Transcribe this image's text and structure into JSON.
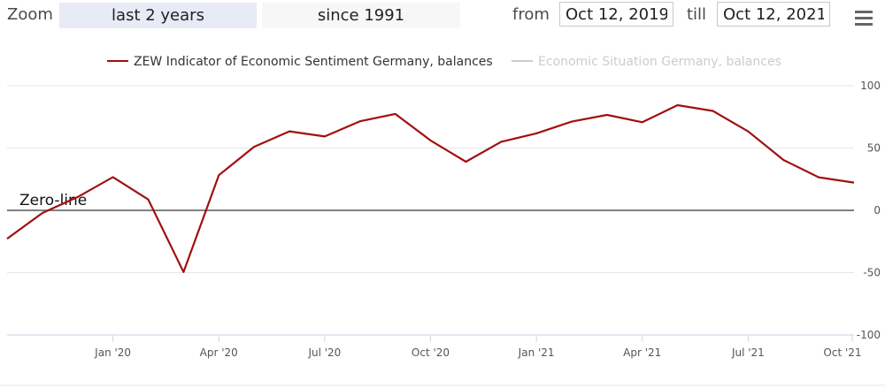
{
  "toolbar": {
    "zoom_label": "Zoom",
    "zoom_buttons": [
      "last 2 years",
      "since 1991"
    ],
    "from_label": "from",
    "from_value": "Oct 12, 2019",
    "till_label": "till",
    "till_value": "Oct 12, 2021",
    "menu_icon": "hamburger-menu-icon"
  },
  "colors": {
    "series_1": "#a01010",
    "series_2_hidden": "#cccccc",
    "zero_line": "#808080",
    "grid": "#e6e6e6",
    "active_zoom": "#e6ebf5"
  },
  "chart_data": {
    "type": "line",
    "legend_position": "top-center",
    "series": [
      {
        "name": "ZEW Indicator of Economic Sentiment Germany, balances",
        "visible": true,
        "x": [
          "2019-10",
          "2019-11",
          "2019-12",
          "2020-01",
          "2020-02",
          "2020-03",
          "2020-04",
          "2020-05",
          "2020-06",
          "2020-07",
          "2020-08",
          "2020-09",
          "2020-10",
          "2020-11",
          "2020-12",
          "2021-01",
          "2021-02",
          "2021-03",
          "2021-04",
          "2021-05",
          "2021-06",
          "2021-07",
          "2021-08",
          "2021-09",
          "2021-10"
        ],
        "values": [
          -22.8,
          -2.1,
          10.7,
          26.7,
          8.7,
          -49.5,
          28.2,
          51.0,
          63.4,
          59.3,
          71.5,
          77.4,
          56.1,
          39.0,
          55.0,
          61.8,
          71.2,
          76.6,
          70.7,
          84.4,
          79.8,
          63.3,
          40.4,
          26.5,
          22.3
        ]
      },
      {
        "name": "Economic Situation Germany, balances",
        "visible": false,
        "values": []
      }
    ],
    "x_tick_labels": [
      "Jan '20",
      "Apr '20",
      "Jul '20",
      "Oct '20",
      "Jan '21",
      "Apr '21",
      "Jul '21",
      "Oct '21"
    ],
    "y_tick_labels": [
      "100",
      "50",
      "0",
      "-50",
      "-100"
    ],
    "ylim": [
      -100,
      100
    ],
    "grid": true,
    "plot_lines": [
      {
        "value": 0,
        "label": "Zero-line"
      }
    ]
  }
}
